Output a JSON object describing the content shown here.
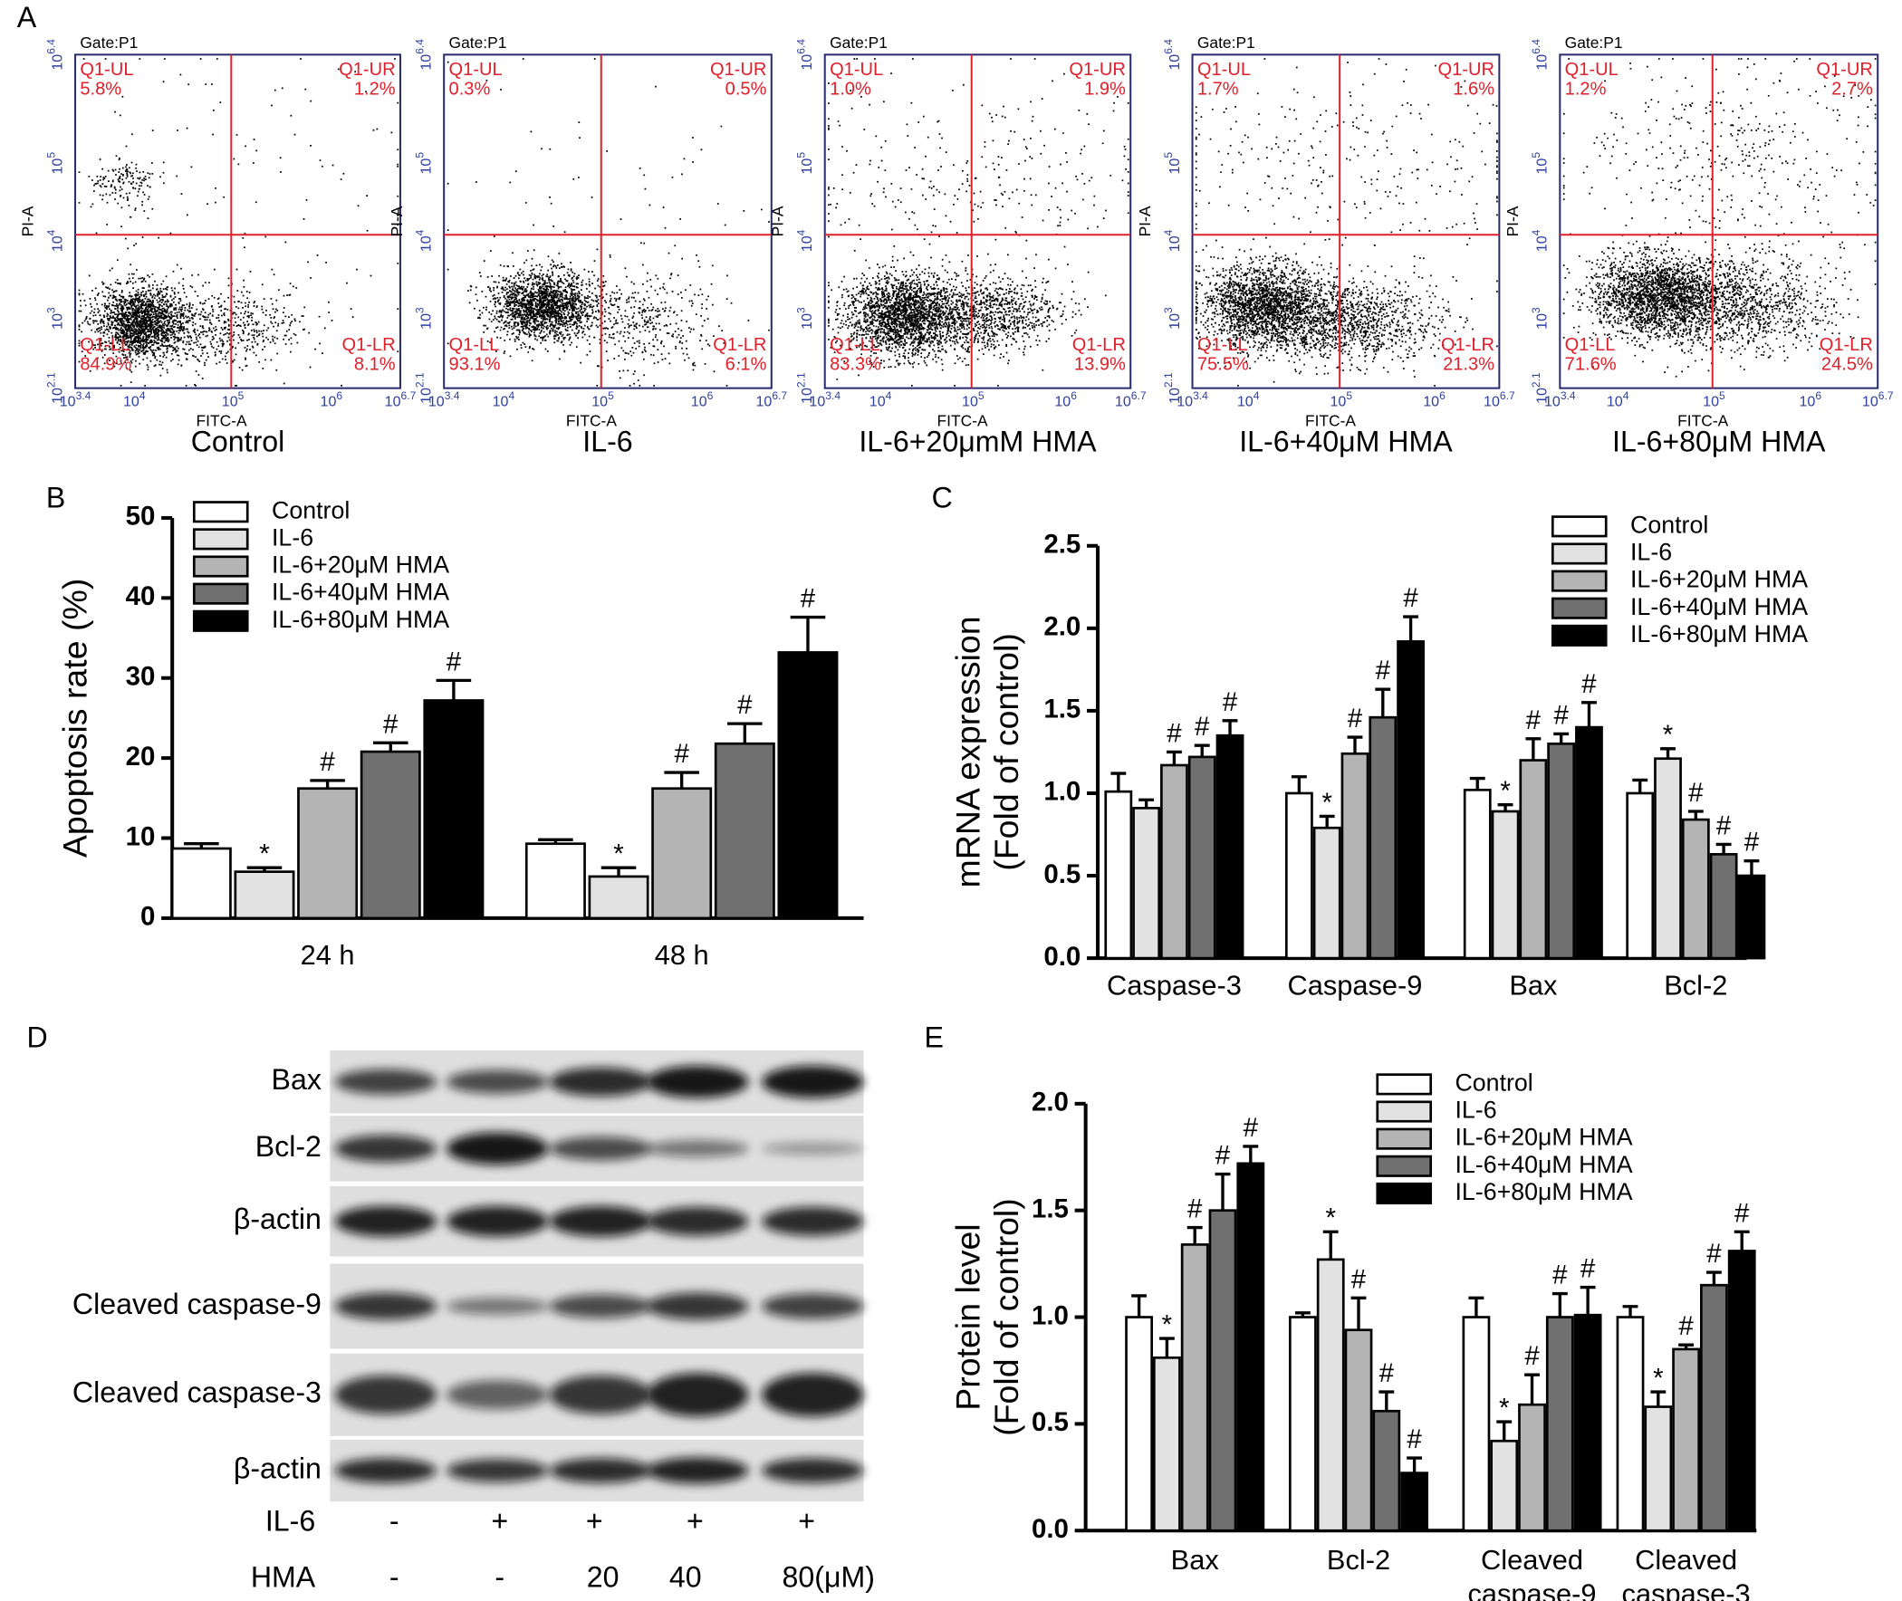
{
  "panel_letters": [
    "A",
    "B",
    "C",
    "D",
    "E"
  ],
  "flow_cytometry": {
    "gate": "Gate:P1",
    "x_axis_title": "FITC-A",
    "y_axis_title": "PI-A",
    "x_ticks": [
      {
        "base": "10",
        "exp": "3.4"
      },
      {
        "base": "10",
        "exp": "4"
      },
      {
        "base": "10",
        "exp": "5"
      },
      {
        "base": "10",
        "exp": "6"
      },
      {
        "base": "10",
        "exp": "6.7"
      }
    ],
    "y_ticks": [
      {
        "base": "10",
        "exp": "2.1"
      },
      {
        "base": "10",
        "exp": "3"
      },
      {
        "base": "10",
        "exp": "4"
      },
      {
        "base": "10",
        "exp": "5"
      },
      {
        "base": "10",
        "exp": "6.4"
      }
    ],
    "plots": [
      {
        "label": "Control",
        "quadrants": [
          {
            "name": "Q1-UL",
            "value": "5.8%"
          },
          {
            "name": "Q1-UR",
            "value": "1.2%"
          },
          {
            "name": "Q1-LL",
            "value": "84.9%"
          },
          {
            "name": "Q1-LR",
            "value": "8.1%"
          }
        ]
      },
      {
        "label": "IL-6",
        "quadrants": [
          {
            "name": "Q1-UL",
            "value": "0.3%"
          },
          {
            "name": "Q1-UR",
            "value": "0.5%"
          },
          {
            "name": "Q1-LL",
            "value": "93.1%"
          },
          {
            "name": "Q1-LR",
            "value": "6.1%"
          }
        ]
      },
      {
        "label": "IL-6+20μmM HMA",
        "quadrants": [
          {
            "name": "Q1-UL",
            "value": "1.0%"
          },
          {
            "name": "Q1-UR",
            "value": "1.9%"
          },
          {
            "name": "Q1-LL",
            "value": "83.3%"
          },
          {
            "name": "Q1-LR",
            "value": "13.9%"
          }
        ]
      },
      {
        "label": "IL-6+40μM HMA",
        "quadrants": [
          {
            "name": "Q1-UL",
            "value": "1.7%"
          },
          {
            "name": "Q1-UR",
            "value": "1.6%"
          },
          {
            "name": "Q1-LL",
            "value": "75.5%"
          },
          {
            "name": "Q1-LR",
            "value": "21.3%"
          }
        ]
      },
      {
        "label": "IL-6+80μM HMA",
        "quadrants": [
          {
            "name": "Q1-UL",
            "value": "1.2%"
          },
          {
            "name": "Q1-UR",
            "value": "2.7%"
          },
          {
            "name": "Q1-LL",
            "value": "71.6%"
          },
          {
            "name": "Q1-LR",
            "value": "24.5%"
          }
        ]
      }
    ]
  },
  "chart_data": [
    {
      "type": "bar",
      "ylabel": [
        "Apoptosis rate (%)"
      ],
      "legend": "upper left",
      "categories": [
        "24 h",
        "48 h"
      ],
      "ylim": [
        0,
        50
      ],
      "yticks": [
        0,
        10,
        20,
        30,
        40,
        50
      ],
      "series": [
        {
          "name": "Control",
          "color": "#ffffff",
          "values": [
            8.7,
            9.3
          ],
          "errors": [
            0.6,
            0.5
          ],
          "annotations": [
            null,
            null
          ]
        },
        {
          "name": "IL-6",
          "color": "#e2e2e2",
          "values": [
            5.8,
            5.2
          ],
          "errors": [
            0.5,
            1.1
          ],
          "annotations": [
            "*",
            "*"
          ]
        },
        {
          "name": "IL-6+20μM HMA",
          "color": "#b4b4b4",
          "values": [
            16.2,
            16.2
          ],
          "errors": [
            1.0,
            2.0
          ],
          "annotations": [
            "#",
            "#"
          ]
        },
        {
          "name": "IL-6+40μM HMA",
          "color": "#707070",
          "values": [
            20.8,
            21.8
          ],
          "errors": [
            1.1,
            2.5
          ],
          "annotations": [
            "#",
            "#"
          ]
        },
        {
          "name": "IL-6+80μM HMA",
          "color": "#000000",
          "values": [
            27.2,
            33.2
          ],
          "errors": [
            2.5,
            4.4
          ],
          "annotations": [
            "#",
            "#"
          ]
        }
      ]
    },
    {
      "type": "bar",
      "ylabel": [
        "mRNA expression",
        "(Fold of control)"
      ],
      "legend": "upper right",
      "categories": [
        "Caspase-3",
        "Caspase-9",
        "Bax",
        "Bcl-2"
      ],
      "ylim": [
        0,
        2.5
      ],
      "yticks": [
        {
          "value": 0,
          "label": "0.0"
        },
        0.5,
        {
          "value": 1,
          "label": "1.0"
        },
        1.5,
        {
          "value": 2,
          "label": "2.0"
        },
        2.5
      ],
      "series": [
        {
          "name": "Control",
          "color": "#ffffff",
          "values": [
            1.01,
            1.0,
            1.02,
            1.0
          ],
          "errors": [
            0.11,
            0.1,
            0.07,
            0.08
          ],
          "annotations": [
            null,
            null,
            null,
            null
          ]
        },
        {
          "name": "IL-6",
          "color": "#e2e2e2",
          "values": [
            0.91,
            0.79,
            0.89,
            1.21
          ],
          "errors": [
            0.05,
            0.07,
            0.04,
            0.06
          ],
          "annotations": [
            null,
            "*",
            "*",
            "*"
          ]
        },
        {
          "name": "IL-6+20μM HMA",
          "color": "#b4b4b4",
          "values": [
            1.17,
            1.24,
            1.2,
            0.84
          ],
          "errors": [
            0.08,
            0.1,
            0.13,
            0.05
          ],
          "annotations": [
            "#",
            "#",
            "#",
            "#"
          ]
        },
        {
          "name": "IL-6+40μM HMA",
          "color": "#707070",
          "values": [
            1.22,
            1.46,
            1.3,
            0.63
          ],
          "errors": [
            0.07,
            0.17,
            0.06,
            0.06
          ],
          "annotations": [
            "#",
            "#",
            "#",
            "#"
          ]
        },
        {
          "name": "IL-6+80μM HMA",
          "color": "#000000",
          "values": [
            1.35,
            1.92,
            1.4,
            0.5
          ],
          "errors": [
            0.09,
            0.15,
            0.15,
            0.09
          ],
          "annotations": [
            "#",
            "#",
            "#",
            "#"
          ]
        }
      ]
    },
    {
      "type": "bar",
      "ylabel": [
        "Protein level",
        "(Fold of control)"
      ],
      "legend": "upper center",
      "categories": [
        [
          "Bax"
        ],
        [
          "Bcl-2"
        ],
        [
          "Cleaved",
          "caspase-9"
        ],
        [
          "Cleaved",
          "caspase-3"
        ]
      ],
      "ylim": [
        0,
        2
      ],
      "yticks": [
        {
          "value": 0,
          "label": "0.0"
        },
        0.5,
        {
          "value": 1,
          "label": "1.0"
        },
        1.5,
        {
          "value": 2,
          "label": "2.0"
        }
      ],
      "series": [
        {
          "name": "Control",
          "color": "#ffffff",
          "values": [
            1.0,
            1.0,
            1.0,
            1.0
          ],
          "errors": [
            0.1,
            0.02,
            0.09,
            0.05
          ],
          "annotations": [
            null,
            null,
            null,
            null
          ]
        },
        {
          "name": "IL-6",
          "color": "#e2e2e2",
          "values": [
            0.81,
            1.27,
            0.42,
            0.58
          ],
          "errors": [
            0.09,
            0.13,
            0.09,
            0.07
          ],
          "annotations": [
            "*",
            "*",
            "*",
            "*"
          ]
        },
        {
          "name": "IL-6+20μM HMA",
          "color": "#b4b4b4",
          "values": [
            1.34,
            0.94,
            0.59,
            0.85
          ],
          "errors": [
            0.08,
            0.15,
            0.14,
            0.02
          ],
          "annotations": [
            "#",
            "#",
            "#",
            "#"
          ]
        },
        {
          "name": "IL-6+40μM HMA",
          "color": "#707070",
          "values": [
            1.5,
            0.56,
            1.0,
            1.15
          ],
          "errors": [
            0.17,
            0.09,
            0.11,
            0.06
          ],
          "annotations": [
            "#",
            "#",
            "#",
            "#"
          ]
        },
        {
          "name": "IL-6+80μM HMA",
          "color": "#000000",
          "values": [
            1.72,
            0.27,
            1.01,
            1.31
          ],
          "errors": [
            0.08,
            0.07,
            0.13,
            0.09
          ],
          "annotations": [
            "#",
            "#",
            "#",
            "#"
          ]
        }
      ]
    }
  ],
  "western_blot": {
    "rows": [
      "Bax",
      "Bcl-2",
      "β-actin",
      "Cleaved caspase-9",
      "Cleaved caspase-3",
      "β-actin"
    ],
    "conditions": [
      {
        "label": "IL-6",
        "values": [
          "-",
          "+",
          "+",
          "+",
          "+"
        ]
      },
      {
        "label": "HMA",
        "values": [
          "-",
          "-",
          "20",
          "40",
          "80(μM)"
        ]
      }
    ]
  }
}
